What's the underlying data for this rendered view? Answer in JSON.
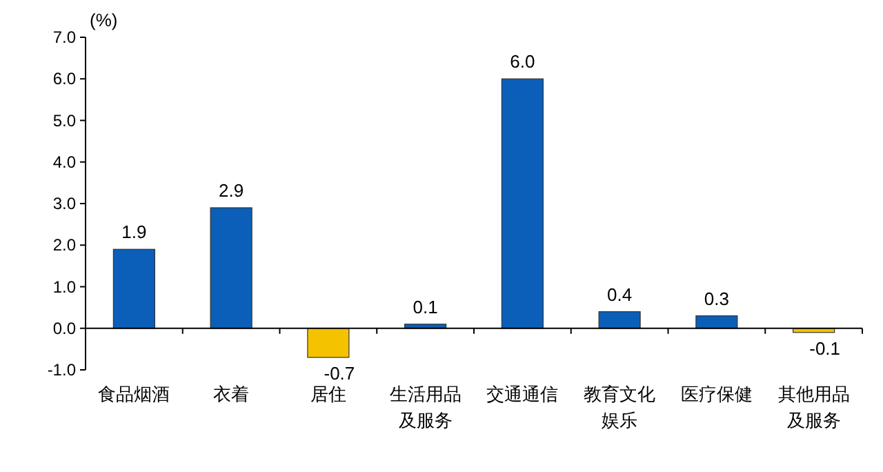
{
  "chart_data": {
    "type": "bar",
    "ylabel": "(%)",
    "categories": [
      "食品烟酒",
      "衣着",
      "居住",
      "生活用品及服务",
      "交通通信",
      "教育文化娱乐",
      "医疗保健",
      "其他用品及服务"
    ],
    "values": [
      1.9,
      2.9,
      -0.7,
      0.1,
      6.0,
      0.4,
      0.3,
      -0.1
    ],
    "colors": [
      "#0b5fb8",
      "#0b5fb8",
      "#f5c200",
      "#0b5fb8",
      "#0b5fb8",
      "#0b5fb8",
      "#0b5fb8",
      "#f5c200"
    ],
    "value_labels": [
      "1.9",
      "2.9",
      "-0.7",
      "0.1",
      "6.0",
      "0.4",
      "0.3",
      "-0.1"
    ],
    "ylim": [
      -1,
      7
    ],
    "yticks": [
      {
        "value": -1,
        "label": "-1.0"
      },
      {
        "value": 0,
        "label": "0.0"
      },
      {
        "value": 1,
        "label": "1.0"
      },
      {
        "value": 2,
        "label": "2.0"
      },
      {
        "value": 3,
        "label": "3.0"
      },
      {
        "value": 4,
        "label": "4.0"
      },
      {
        "value": 5,
        "label": "5.0"
      },
      {
        "value": 6,
        "label": "6.0"
      },
      {
        "value": 7,
        "label": "7.0"
      }
    ]
  }
}
